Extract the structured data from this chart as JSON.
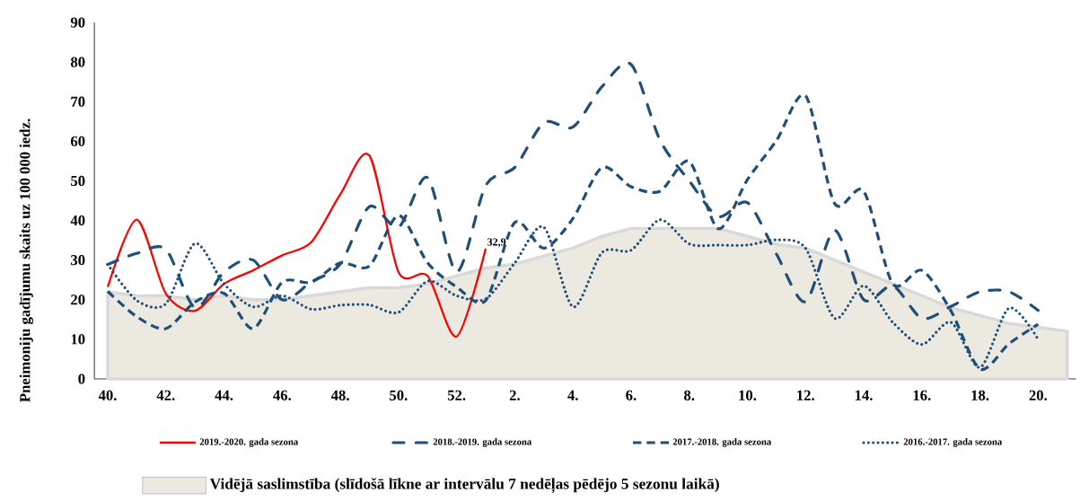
{
  "chart_data": {
    "type": "line",
    "ylabel": "Pneimoniju gadījumu skaits uz 100 000 iedz.",
    "categories": [
      "40.",
      null,
      "42.",
      null,
      "44.",
      null,
      "46.",
      null,
      "48.",
      null,
      "50.",
      null,
      "52.",
      null,
      "2.",
      null,
      "4.",
      null,
      "6.",
      null,
      "8.",
      null,
      "10.",
      null,
      "12.",
      null,
      "14.",
      null,
      "16.",
      null,
      "18.",
      null,
      "20.",
      null
    ],
    "ylim": [
      0,
      90
    ],
    "yticks": [
      0,
      10,
      20,
      30,
      40,
      50,
      60,
      70,
      80,
      90
    ],
    "grid": false,
    "legend": "bottom",
    "series": [
      {
        "name": "2019.-2020. gada sezona",
        "color": "#ff0000",
        "line_style": "solid",
        "values": [
          23.2,
          40.2,
          21.5,
          17.2,
          24,
          27.4,
          31.2,
          34.5,
          46.6,
          56.4,
          27,
          26,
          10.7,
          32.9,
          null,
          null,
          null,
          null,
          null,
          null,
          null,
          null,
          null,
          null,
          null,
          null,
          null,
          null,
          null,
          null,
          null,
          null,
          null,
          null
        ],
        "value_labels": [
          null,
          null,
          null,
          null,
          null,
          null,
          null,
          null,
          null,
          null,
          null,
          null,
          null,
          "32,9",
          null,
          null,
          null,
          null,
          null,
          null,
          null,
          null,
          null,
          null,
          null,
          null,
          null,
          null,
          null,
          null,
          null,
          null,
          null,
          null
        ]
      },
      {
        "name": "2018.-2019. gada sezona",
        "color": "#1f4e79",
        "line_style": "dashdot",
        "values": [
          28.9,
          31.7,
          32.7,
          18,
          27,
          30,
          20,
          24.5,
          29,
          43.5,
          38.3,
          50.8,
          27,
          48.8,
          53.4,
          64.7,
          63.6,
          73.8,
          79.4,
          60.2,
          50,
          41,
          44.5,
          31.5,
          19.5,
          37.5,
          20,
          23.5,
          15.3,
          18.3,
          22,
          22,
          17.3,
          null
        ]
      },
      {
        "name": "2017.-2018. gada sezona",
        "color": "#1f4e79",
        "line_style": "dashed",
        "values": [
          22.1,
          15.7,
          12.7,
          19.4,
          21.6,
          12.7,
          24.4,
          24.4,
          29.3,
          28.5,
          41.3,
          29.3,
          23.2,
          19.8,
          39.5,
          33,
          40.5,
          53.4,
          48.5,
          47.4,
          54.9,
          37.9,
          50.3,
          60.2,
          71.5,
          44.3,
          47.4,
          24,
          27.4,
          17.2,
          2.5,
          8.9,
          13.8,
          null
        ]
      },
      {
        "name": "2016.-2017. gada sezona",
        "color": "#1f4e79",
        "line_style": "dotted",
        "values": [
          28.9,
          19.8,
          19,
          34.2,
          24,
          18.2,
          21,
          17.6,
          18.6,
          18.7,
          16.8,
          24.7,
          21,
          20.2,
          29.3,
          38.3,
          18.2,
          31.9,
          32.5,
          40.2,
          34.1,
          33.8,
          33.8,
          35.1,
          33,
          15.3,
          23.5,
          14.3,
          8.7,
          14.3,
          2.9,
          17.9,
          10,
          null
        ]
      },
      {
        "name": "Vidējā saslimstība (slīdošā līkne ar intervālu 7 nedēļas pēdējo 5 sezonu laikā)",
        "type": "area",
        "color": "#ece9e0",
        "values": [
          22,
          21,
          21,
          20,
          21,
          20,
          20,
          21,
          22,
          23,
          23,
          24,
          26,
          28,
          29,
          31,
          33,
          36,
          38,
          38,
          38,
          38,
          36,
          34,
          33,
          30,
          27,
          24,
          21,
          18,
          16,
          14,
          13,
          12
        ]
      }
    ]
  }
}
